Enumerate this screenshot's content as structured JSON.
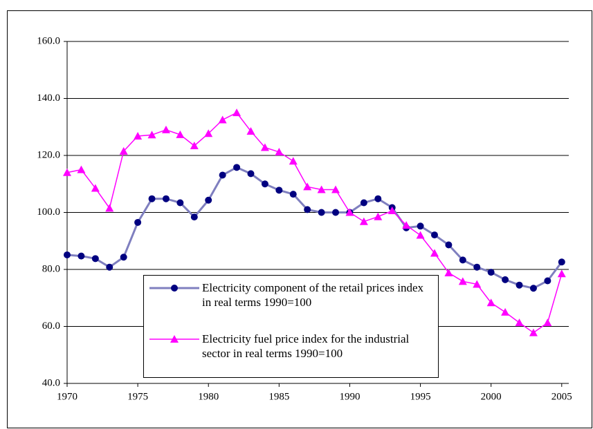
{
  "chart_data": {
    "type": "line",
    "x": [
      1970,
      1971,
      1972,
      1973,
      1974,
      1975,
      1976,
      1977,
      1978,
      1979,
      1980,
      1981,
      1982,
      1983,
      1984,
      1985,
      1986,
      1987,
      1988,
      1989,
      1990,
      1991,
      1992,
      1993,
      1994,
      1995,
      1996,
      1997,
      1998,
      1999,
      2000,
      2001,
      2002,
      2003,
      2004,
      2005
    ],
    "series": [
      {
        "name": "Electricity component of the retail prices index in real terms 1990=100",
        "color": "#7f7fbf",
        "marker_color": "#000080",
        "marker": "circle",
        "values": [
          85.1,
          84.7,
          83.8,
          80.8,
          84.3,
          96.5,
          104.8,
          104.8,
          103.4,
          98.4,
          104.3,
          113.1,
          115.8,
          113.6,
          110.0,
          107.8,
          106.4,
          101.0,
          100.0,
          100.0,
          100.0,
          103.4,
          104.8,
          101.7,
          94.6,
          95.2,
          92.1,
          88.6,
          83.3,
          80.8,
          79.0,
          76.4,
          74.5,
          73.4,
          76.0,
          82.6
        ]
      },
      {
        "name": "Electricity fuel price index for the industrial sector in real terms 1990=100",
        "color": "#ff00ff",
        "marker_color": "#ff00ff",
        "marker": "triangle",
        "values": [
          114.0,
          115.0,
          108.5,
          101.5,
          121.5,
          126.8,
          127.2,
          129.0,
          127.3,
          123.4,
          127.7,
          132.5,
          135.0,
          128.5,
          122.8,
          121.2,
          118.0,
          109.0,
          108.0,
          108.0,
          100.0,
          96.8,
          98.5,
          100.6,
          95.5,
          92.0,
          85.7,
          78.8,
          75.8,
          74.8,
          68.3,
          65.0,
          61.3,
          57.8,
          61.3,
          78.5
        ]
      }
    ],
    "xlim": [
      1970,
      2005.5
    ],
    "xticks": [
      1970,
      1975,
      1980,
      1985,
      1990,
      1995,
      2000,
      2005
    ],
    "ylim": [
      40,
      160
    ],
    "yticks": [
      {
        "value": 40,
        "label": "40.0"
      },
      {
        "value": 60,
        "label": "60.0"
      },
      {
        "value": 80,
        "label": "80.0"
      },
      {
        "value": 100,
        "label": "100.0"
      },
      {
        "value": 120,
        "label": "120.0"
      },
      {
        "value": 140,
        "label": "140.0"
      },
      {
        "value": 160,
        "label": "160.0"
      }
    ],
    "grid": true
  }
}
